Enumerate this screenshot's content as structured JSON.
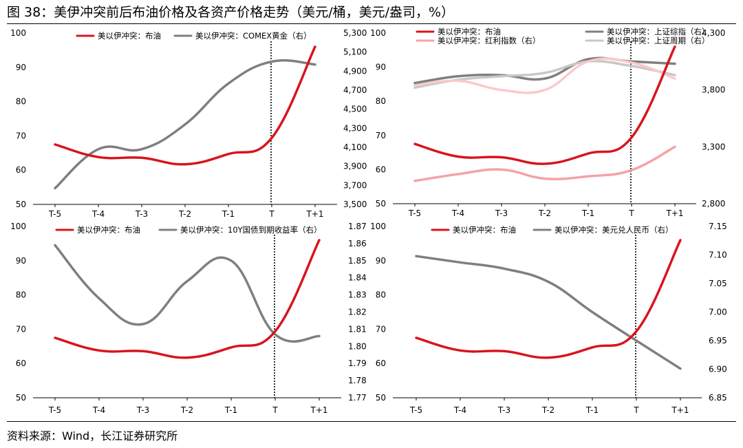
{
  "title": "图 38：美伊冲突前后布油价格及各资产价格走势（美元/桶，美元/盎司，%）",
  "source": "资料来源：Wind，长江证券研究所",
  "colors": {
    "red": "#d9141c",
    "gray": "#7f7f7f",
    "pink": "#f4a3a5",
    "lightpink": "#fbc9cb",
    "lightgray": "#c8c8c8"
  },
  "chart_data": [
    {
      "type": "line",
      "categories": [
        "T-5",
        "T-4",
        "T-3",
        "T-2",
        "T-1",
        "T",
        "T+1"
      ],
      "marker_category": "T",
      "left_axis": {
        "ticks": [
          "50",
          "60",
          "70",
          "80",
          "90",
          "100"
        ],
        "range": [
          50,
          100
        ]
      },
      "right_axis": {
        "ticks": [
          "3,500",
          "3,700",
          "3,900",
          "4,100",
          "4,300",
          "4,500",
          "4,700",
          "4,900",
          "5,100",
          "5,300"
        ],
        "range": [
          3500,
          5300
        ]
      },
      "series": [
        {
          "name": "美以伊冲突：布油",
          "axis": "left",
          "color": "#d9141c",
          "width": 3.5,
          "values": [
            67.5,
            63.8,
            63.6,
            61.7,
            64.7,
            69.4,
            96
          ]
        },
        {
          "name": "美以伊冲突：COMEX黄金（右）",
          "axis": "right",
          "color": "#7f7f7f",
          "width": 3.5,
          "values": [
            3670,
            4080,
            4080,
            4340,
            4770,
            5000,
            4970
          ]
        }
      ]
    },
    {
      "type": "line",
      "categories": [
        "T-5",
        "T-4",
        "T-3",
        "T-2",
        "T-1",
        "T",
        "T+1"
      ],
      "marker_category": "T",
      "left_axis": {
        "ticks": [
          "50",
          "60",
          "70",
          "80",
          "90",
          "100"
        ],
        "range": [
          50,
          100
        ]
      },
      "right_axis": {
        "ticks": [
          "2,800",
          "3,300",
          "3,800",
          "4,300"
        ],
        "range": [
          2800,
          4300
        ]
      },
      "series": [
        {
          "name": "美以伊冲突：布油",
          "axis": "left",
          "color": "#d9141c",
          "width": 3.5,
          "values": [
            67.5,
            63.8,
            63.6,
            61.7,
            64.7,
            69.4,
            96
          ]
        },
        {
          "name": "美以伊冲突：上证综指（右）",
          "axis": "right",
          "color": "#7f7f7f",
          "width": 3.5,
          "values": [
            3860,
            3920,
            3930,
            3900,
            4070,
            4050,
            4030
          ]
        },
        {
          "name": "美以伊冲突：红利指数（右）",
          "axis": "right",
          "color": "#f4a3a5",
          "width": 3.5,
          "values": [
            3000,
            3060,
            3100,
            3020,
            3040,
            3095,
            3300
          ]
        },
        {
          "name": "美以伊冲突：上证周期（右）",
          "axis": "right",
          "color": "#c8c8c8",
          "width": 3.5,
          "values": [
            3820,
            3890,
            3920,
            3950,
            4050,
            4010,
            3930
          ]
        },
        {
          "name": "",
          "axis": "right",
          "color": "#fbc9cb",
          "width": 3.5,
          "values": [
            3840,
            3880,
            3800,
            3800,
            4050,
            4040,
            3900
          ]
        }
      ]
    },
    {
      "type": "line",
      "categories": [
        "T-5",
        "T-4",
        "T-3",
        "T-2",
        "T-1",
        "T",
        "T+1"
      ],
      "marker_category": "T",
      "left_axis": {
        "ticks": [
          "50",
          "60",
          "70",
          "80",
          "90",
          "100"
        ],
        "range": [
          50,
          100
        ]
      },
      "right_axis": {
        "ticks": [
          "1.77",
          "1.78",
          "1.79",
          "1.80",
          "1.81",
          "1.82",
          "1.83",
          "1.84",
          "1.85",
          "1.86",
          "1.87"
        ],
        "range": [
          1.77,
          1.87
        ]
      },
      "series": [
        {
          "name": "美以伊冲突：布油",
          "axis": "left",
          "color": "#d9141c",
          "width": 3.5,
          "values": [
            67.5,
            63.8,
            63.6,
            61.7,
            64.7,
            69.4,
            96
          ]
        },
        {
          "name": "美以伊冲突：10Y国债到期收益率（右）",
          "axis": "right",
          "color": "#7f7f7f",
          "width": 3.5,
          "values": [
            1.859,
            1.828,
            1.813,
            1.838,
            1.85,
            1.807,
            1.806
          ]
        }
      ]
    },
    {
      "type": "line",
      "categories": [
        "T-5",
        "T-4",
        "T-3",
        "T-2",
        "T-1",
        "T",
        "T+1"
      ],
      "marker_category": "T",
      "left_axis": {
        "ticks": [
          "50",
          "60",
          "70",
          "80",
          "90",
          "100"
        ],
        "range": [
          50,
          100
        ]
      },
      "right_axis": {
        "ticks": [
          "6.85",
          "6.90",
          "6.95",
          "7.00",
          "7.05",
          "7.10",
          "7.15"
        ],
        "range": [
          6.85,
          7.15
        ]
      },
      "series": [
        {
          "name": "美以伊冲突：布油",
          "axis": "left",
          "color": "#d9141c",
          "width": 3.5,
          "values": [
            67.5,
            63.8,
            63.6,
            61.7,
            64.7,
            69.4,
            96
          ]
        },
        {
          "name": "美以伊冲突：美元兑人民币（右）",
          "axis": "right",
          "color": "#7f7f7f",
          "width": 3.5,
          "values": [
            7.098,
            7.087,
            7.076,
            7.053,
            7.0,
            6.95,
            6.901
          ]
        }
      ]
    }
  ]
}
